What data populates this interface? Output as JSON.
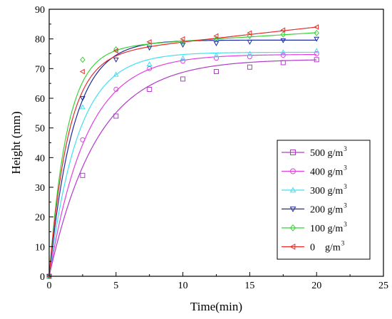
{
  "chart_data": {
    "type": "scatter",
    "xlabel": "Time(min)",
    "ylabel": "Height (mm)",
    "xlim": [
      0,
      25
    ],
    "ylim": [
      0,
      90
    ],
    "xticks": [
      0,
      5,
      10,
      15,
      20,
      25
    ],
    "yticks": [
      0,
      10,
      20,
      30,
      40,
      50,
      60,
      70,
      80,
      90
    ],
    "legend_position": "lower-right",
    "grid": false,
    "series": [
      {
        "name": "500 g/m",
        "name_sup": "3",
        "color": "#b03cc8",
        "marker": "square",
        "points": [
          [
            0,
            0
          ],
          [
            2.5,
            34
          ],
          [
            5,
            54
          ],
          [
            7.5,
            63
          ],
          [
            10,
            66.5
          ],
          [
            12.5,
            69
          ],
          [
            15,
            70.5
          ],
          [
            17.5,
            72
          ],
          [
            20,
            73
          ]
        ],
        "fit": {
          "A": 73.2,
          "k": 0.28
        }
      },
      {
        "name": "400 g/m",
        "name_sup": "3",
        "color": "#e040e0",
        "marker": "circle",
        "points": [
          [
            0,
            0
          ],
          [
            2.5,
            46
          ],
          [
            5,
            63
          ],
          [
            7.5,
            70
          ],
          [
            10,
            72.5
          ],
          [
            12.5,
            73.5
          ],
          [
            15,
            74
          ],
          [
            17.5,
            74.5
          ],
          [
            20,
            75
          ]
        ],
        "fit": {
          "A": 74.8,
          "k": 0.36
        }
      },
      {
        "name": "300 g/m",
        "name_sup": "3",
        "color": "#40e0f0",
        "marker": "triangle-up",
        "points": [
          [
            0,
            0
          ],
          [
            2.5,
            57
          ],
          [
            5,
            68
          ],
          [
            7.5,
            71.5
          ],
          [
            10,
            73.5
          ],
          [
            12.5,
            74.5
          ],
          [
            15,
            75
          ],
          [
            17.5,
            75.5
          ],
          [
            20,
            76
          ]
        ],
        "fit": {
          "A": 75.5,
          "k": 0.46
        }
      },
      {
        "name": "200 g/m",
        "name_sup": "3",
        "color": "#1e2aa0",
        "marker": "triangle-down",
        "points": [
          [
            0,
            0
          ],
          [
            2.5,
            60
          ],
          [
            5,
            73
          ],
          [
            7.5,
            77
          ],
          [
            10,
            78
          ],
          [
            12.5,
            78.5
          ],
          [
            15,
            79
          ],
          [
            17.5,
            79.5
          ],
          [
            20,
            80
          ]
        ],
        "fit": {
          "A": 79.6,
          "k": 0.55
        }
      },
      {
        "name": "100 g/m",
        "name_sup": "3",
        "color": "#3ad23a",
        "marker": "diamond",
        "points": [
          [
            0,
            0
          ],
          [
            2.5,
            73
          ],
          [
            5,
            76.5
          ],
          [
            7.5,
            78
          ],
          [
            10,
            79
          ],
          [
            12.5,
            80
          ],
          [
            15,
            81
          ],
          [
            17.5,
            81.5
          ],
          [
            20,
            82
          ]
        ],
        "fit": {
          "A": 76.5,
          "k": 0.75,
          "B": 0.28
        }
      },
      {
        "name": "0    g/m",
        "name_sup": "3",
        "color": "#e82a2a",
        "marker": "triangle-left",
        "points": [
          [
            0,
            0
          ],
          [
            2.5,
            69
          ],
          [
            5,
            76
          ],
          [
            7.5,
            79
          ],
          [
            10,
            80
          ],
          [
            12.5,
            81
          ],
          [
            15,
            82
          ],
          [
            17.5,
            83
          ],
          [
            20,
            84
          ]
        ],
        "fit": {
          "A": 74.0,
          "k": 0.7,
          "B": 0.5
        }
      }
    ]
  }
}
